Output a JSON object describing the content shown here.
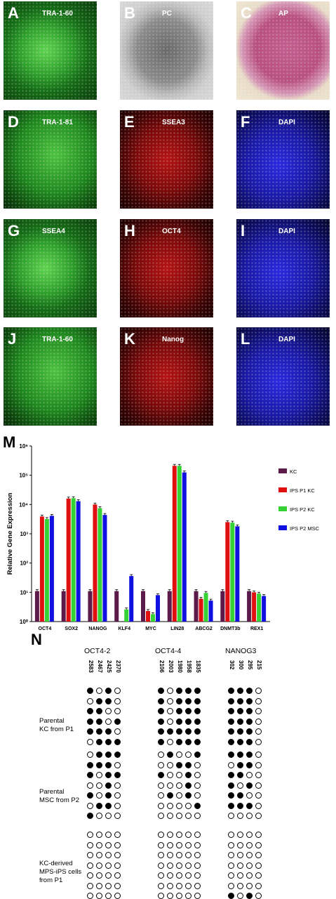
{
  "panels": [
    {
      "letter": "A",
      "label": "TRA-1-60",
      "tone": "green"
    },
    {
      "letter": "B",
      "label": "PC",
      "tone": "gray"
    },
    {
      "letter": "C",
      "label": "AP",
      "tone": "pink"
    },
    {
      "letter": "D",
      "label": "TRA-1-81",
      "tone": "green2"
    },
    {
      "letter": "E",
      "label": "SSEA3",
      "tone": "red"
    },
    {
      "letter": "F",
      "label": "DAPI",
      "tone": "blue"
    },
    {
      "letter": "G",
      "label": "SSEA4",
      "tone": "green"
    },
    {
      "letter": "H",
      "label": "OCT4",
      "tone": "red"
    },
    {
      "letter": "I",
      "label": "DAPI",
      "tone": "blue"
    },
    {
      "letter": "J",
      "label": "TRA-1-60",
      "tone": "green2"
    },
    {
      "letter": "K",
      "label": "Nanog",
      "tone": "red"
    },
    {
      "letter": "L",
      "label": "DAPI",
      "tone": "blue"
    }
  ],
  "m_letter": "M",
  "n_letter": "N",
  "chart_data": {
    "type": "bar",
    "ylabel": "Relative Gene Expression",
    "yscale": "log",
    "ylim": [
      1,
      1000000
    ],
    "ytick_labels": [
      "10⁰",
      "10¹",
      "10²",
      "10³",
      "10⁴",
      "10⁵",
      "10⁶"
    ],
    "legend_position": "right",
    "categories": [
      "OCT4",
      "SOX2",
      "NANOG",
      "KLF4",
      "MYC",
      "LIN28",
      "ABCG2",
      "DNMT3b",
      "REX1"
    ],
    "series": [
      {
        "name": "KC",
        "color": "#5b1a4a",
        "values": [
          11,
          11,
          11,
          11,
          11,
          11,
          11,
          11,
          11
        ]
      },
      {
        "name": "IPS P1 KC",
        "color": "#e01010",
        "values": [
          3900,
          16000,
          10000,
          1,
          2.3,
          210000,
          6,
          2500,
          10
        ]
      },
      {
        "name": "IPS P2 KC",
        "color": "#34d234",
        "values": [
          3200,
          16500,
          7500,
          2.6,
          1.8,
          210000,
          9.5,
          2400,
          9
        ]
      },
      {
        "name": "IPS P2 MSC",
        "color": "#1010e0",
        "values": [
          4100,
          13000,
          4400,
          36,
          8,
          125000,
          5.2,
          1800,
          7.5
        ]
      }
    ]
  },
  "methylation": {
    "genes": [
      {
        "name": "OCT4-2",
        "samples": [
          "2583",
          "2467",
          "2425",
          "2370"
        ]
      },
      {
        "name": "OCT4-4",
        "samples": [
          "2106",
          "2003",
          "1980",
          "1958",
          "1835"
        ]
      },
      {
        "name": "NANOG3",
        "samples": [
          "302",
          "300",
          "295",
          "215"
        ]
      }
    ],
    "groups": [
      {
        "label_lines": [
          "Parental",
          "KC from P1"
        ],
        "rows": [
          [
            "1010",
            "10111",
            "1110"
          ],
          [
            "0110",
            "10111",
            "1110"
          ],
          [
            "1100",
            "10111",
            "1110"
          ],
          [
            "1101",
            "10111",
            "1110"
          ],
          [
            "1110",
            "11111",
            "1110"
          ],
          [
            "0111",
            "10111",
            "1110"
          ]
        ]
      },
      {
        "label_lines": [
          "Parental",
          "MSC from P2"
        ],
        "rows": [
          [
            "0111",
            "01001",
            "1110"
          ],
          [
            "1110",
            "00110",
            "0110"
          ],
          [
            "1011",
            "10010",
            "1100"
          ],
          [
            "0010",
            "00010",
            "1010"
          ],
          [
            "1010",
            "01010",
            "1100"
          ],
          [
            "0110",
            "00001",
            "1110"
          ],
          [
            "1000",
            "00000",
            "0000"
          ]
        ]
      },
      {
        "label_lines": [
          "KC-derived",
          "MPS-iPS cells",
          "from P1"
        ],
        "rows": [
          [
            "0000",
            "00000",
            "0000"
          ],
          [
            "0000",
            "00000",
            "0000"
          ],
          [
            "0000",
            "00000",
            "0000"
          ],
          [
            "0000",
            "00000",
            "0000"
          ],
          [
            "0000",
            "00000",
            "0000"
          ],
          [
            "0000",
            "00000",
            "0000"
          ],
          [
            "0000",
            "00000",
            "1010"
          ]
        ]
      }
    ]
  }
}
